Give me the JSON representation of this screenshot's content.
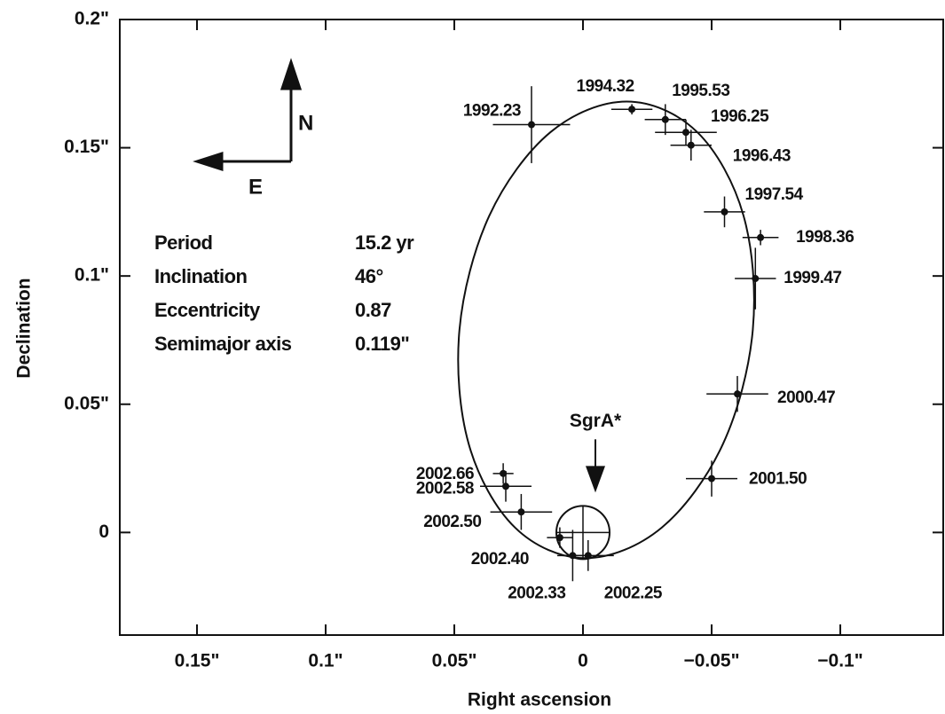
{
  "chart_data": {
    "type": "scatter",
    "x_label": "Right ascension",
    "y_label": "Declination",
    "xlim": [
      0.18,
      -0.14
    ],
    "ylim": [
      -0.04,
      0.2
    ],
    "xticks": [
      {
        "value": 0.15,
        "label": "0.15\""
      },
      {
        "value": 0.1,
        "label": "0.1\""
      },
      {
        "value": 0.05,
        "label": "0.05\""
      },
      0,
      {
        "value": -0.05,
        "label": "−0.05\""
      },
      {
        "value": -0.1,
        "label": "−0.1\""
      }
    ],
    "yticks": [
      0,
      {
        "value": 0.05,
        "label": "0.05\""
      },
      {
        "value": 0.1,
        "label": "0.1\""
      },
      {
        "value": 0.15,
        "label": "0.15\""
      },
      {
        "value": 0.2,
        "label": "0.2\""
      }
    ],
    "point_labels": [
      "1992.23",
      "1994.32",
      "1995.53",
      "1996.25",
      "1996.43",
      "1997.54",
      "1998.36",
      "1999.47",
      "2000.47",
      "2001.50",
      "2002.25",
      "2002.33",
      "2002.40",
      "2002.50",
      "2002.58",
      "2002.66"
    ],
    "x": [
      0.02,
      -0.019,
      -0.032,
      -0.04,
      -0.042,
      -0.055,
      -0.069,
      -0.067,
      -0.06,
      -0.05,
      -0.002,
      0.004,
      0.009,
      0.024,
      0.03,
      0.031
    ],
    "y": [
      0.159,
      0.165,
      0.161,
      0.156,
      0.151,
      0.125,
      0.115,
      0.099,
      0.054,
      0.021,
      -0.009,
      -0.009,
      -0.002,
      0.008,
      0.018,
      0.023
    ],
    "xerr": [
      0.015,
      0.008,
      0.008,
      0.012,
      0.008,
      0.008,
      0.007,
      0.008,
      0.012,
      0.01,
      0.01,
      0.006,
      0.005,
      0.012,
      0.01,
      0.004
    ],
    "yerr": [
      0.015,
      0.002,
      0.006,
      0.005,
      0.006,
      0.006,
      0.003,
      0.012,
      0.007,
      0.007,
      0.006,
      0.01,
      0.004,
      0.007,
      0.006,
      0.004
    ],
    "orbit": {
      "x": [
        0.048,
        0.0364,
        0.0126,
        -0.017,
        -0.0444,
        -0.0624,
        -0.066,
        -0.0544,
        -0.0306,
        -0.001,
        0.0264,
        0.0444
      ],
      "y": [
        0.079,
        0.1235,
        0.1561,
        0.168,
        0.1561,
        0.1235,
        0.079,
        0.0345,
        0.0019,
        -0.01,
        0.0019,
        0.0345
      ]
    },
    "center": {
      "label": "SgrA*",
      "x": 0,
      "y": 0
    },
    "compass": {
      "north": "N",
      "east": "E"
    },
    "parameters": [
      [
        "Period",
        "15.2 yr"
      ],
      [
        "Inclination",
        "46°"
      ],
      [
        "Eccentricity",
        "0.87"
      ],
      [
        "Semimajor axis",
        "0.119\""
      ]
    ]
  }
}
